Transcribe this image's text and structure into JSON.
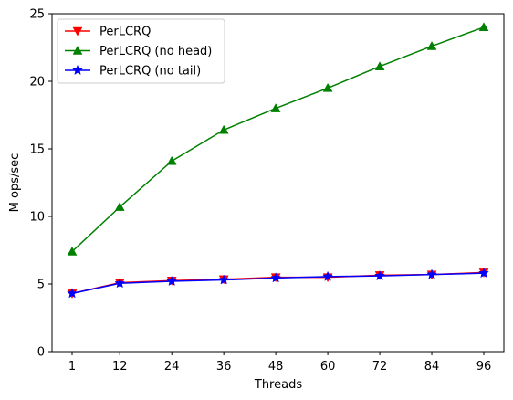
{
  "chart_data": {
    "type": "line",
    "xlabel": "Threads",
    "ylabel": "M ops/sec",
    "x": [
      1,
      12,
      24,
      36,
      48,
      60,
      72,
      84,
      96
    ],
    "x_tick_labels": [
      "1",
      "12",
      "24",
      "36",
      "48",
      "60",
      "72",
      "84",
      "96"
    ],
    "ylim": [
      0,
      25
    ],
    "y_ticks": [
      0,
      5,
      10,
      15,
      20,
      25
    ],
    "y_tick_labels": [
      "0",
      "5",
      "10",
      "15",
      "20",
      "25"
    ],
    "grid": false,
    "legend_position": "top-left",
    "series": [
      {
        "name": "PerLCRQ",
        "color": "#ff0000",
        "marker": "triangle-down",
        "values": [
          4.3,
          5.1,
          5.25,
          5.35,
          5.5,
          5.5,
          5.65,
          5.7,
          5.85
        ]
      },
      {
        "name": "PerLCRQ (no head)",
        "color": "#008000",
        "marker": "triangle-up",
        "values": [
          7.4,
          10.7,
          14.1,
          16.4,
          18.0,
          19.5,
          21.1,
          22.6,
          24.0
        ]
      },
      {
        "name": "PerLCRQ (no tail)",
        "color": "#0000ff",
        "marker": "star",
        "values": [
          4.3,
          5.05,
          5.2,
          5.3,
          5.45,
          5.55,
          5.6,
          5.7,
          5.8
        ]
      }
    ]
  }
}
